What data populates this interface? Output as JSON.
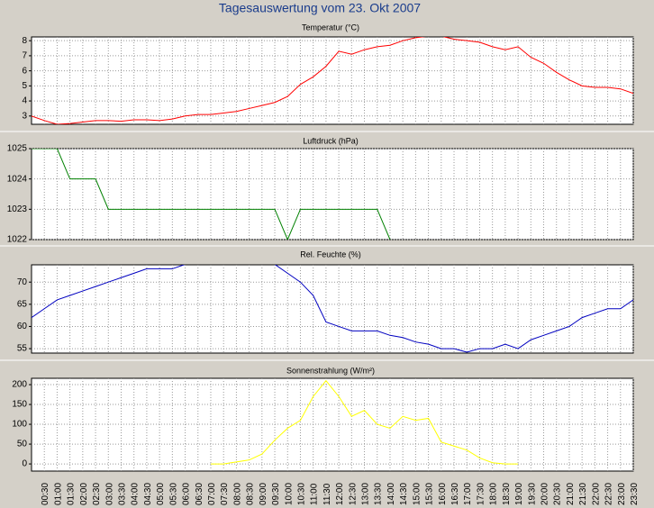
{
  "title": "Tagesauswertung vom 23. Okt 2007",
  "chart_data": [
    {
      "type": "line",
      "title": "Temperatur (°C)",
      "color": "#ff0000",
      "grid": true,
      "ylim": [
        2.45,
        8.25
      ],
      "yticks": [
        3,
        4,
        5,
        6,
        7,
        8
      ],
      "values": [
        3.0,
        2.7,
        2.45,
        2.5,
        2.6,
        2.7,
        2.7,
        2.65,
        2.75,
        2.75,
        2.7,
        2.8,
        3.0,
        3.1,
        3.1,
        3.2,
        3.3,
        3.5,
        3.7,
        3.9,
        4.3,
        5.1,
        5.6,
        6.3,
        7.3,
        7.1,
        7.4,
        7.6,
        7.7,
        8.0,
        8.2,
        8.3,
        8.3,
        8.1,
        8.0,
        7.9,
        7.6,
        7.4,
        7.6,
        6.9,
        6.5,
        5.9,
        5.4,
        5.0,
        4.9,
        4.9,
        4.8,
        4.5
      ]
    },
    {
      "type": "line",
      "title": "Luftdruck (hPa)",
      "color": "#008000",
      "grid": true,
      "ylim": [
        1022,
        1025
      ],
      "yticks": [
        1022,
        1023,
        1024,
        1025
      ],
      "values": [
        1025,
        1025,
        1025,
        1024,
        1024,
        1024,
        1023,
        1023,
        1023,
        1023,
        1023,
        1023,
        1023,
        1023,
        1023,
        1023,
        1023,
        1023,
        1023,
        1023,
        1022,
        1023,
        1023,
        1023,
        1023,
        1023,
        1023,
        1023,
        1022,
        null,
        null,
        null,
        null,
        null,
        null,
        null,
        null,
        null,
        null,
        null,
        null,
        null,
        null,
        null,
        null,
        null,
        null,
        null
      ]
    },
    {
      "type": "line",
      "title": "Rel. Feuchte (%)",
      "color": "#0000c0",
      "grid": true,
      "ylim": [
        54,
        73.9
      ],
      "yticks": [
        55,
        60,
        65,
        70
      ],
      "values": [
        62,
        64,
        66,
        67,
        68,
        69,
        70,
        71,
        72,
        73,
        73,
        73,
        74,
        74,
        74,
        74,
        74,
        74,
        74,
        74,
        72,
        70,
        67,
        61,
        60,
        59,
        59,
        59,
        58,
        57.5,
        56.5,
        56,
        55,
        55,
        54.2,
        55,
        55,
        56,
        55,
        57,
        58,
        59,
        60,
        62,
        63,
        64,
        64,
        66
      ]
    },
    {
      "type": "line",
      "title": "Sonnenstrahlung (W/m²)",
      "color": "#ffff00",
      "grid": true,
      "ylim": [
        -18,
        216
      ],
      "yticks": [
        0,
        50,
        100,
        150,
        200
      ],
      "values": [
        null,
        null,
        null,
        null,
        null,
        null,
        null,
        null,
        null,
        null,
        null,
        null,
        null,
        null,
        0,
        0,
        5,
        10,
        25,
        60,
        90,
        110,
        170,
        210,
        170,
        120,
        135,
        100,
        90,
        120,
        110,
        115,
        55,
        45,
        35,
        15,
        3,
        0,
        0,
        null,
        null,
        null,
        null,
        null,
        null,
        null,
        null,
        null
      ],
      "categories": [
        null,
        "00:30",
        "01:00",
        "01:30",
        "02:00",
        "02:30",
        "03:00",
        "03:30",
        "04:00",
        "04:30",
        "05:00",
        "05:30",
        "06:00",
        "06:30",
        "07:00",
        "07:30",
        "08:00",
        "08:30",
        "09:00",
        "09:30",
        "10:00",
        "10:30",
        "11:00",
        "11:30",
        "12:00",
        "12:30",
        "13:00",
        "13:30",
        "14:00",
        "14:30",
        "15:00",
        "15:30",
        "16:00",
        "16:30",
        "17:00",
        "17:30",
        "18:00",
        "18:30",
        "19:00",
        "19:30",
        "20:00",
        "20:30",
        "21:00",
        "21:30",
        "22:00",
        "22:30",
        "23:00",
        "23:30"
      ]
    }
  ]
}
